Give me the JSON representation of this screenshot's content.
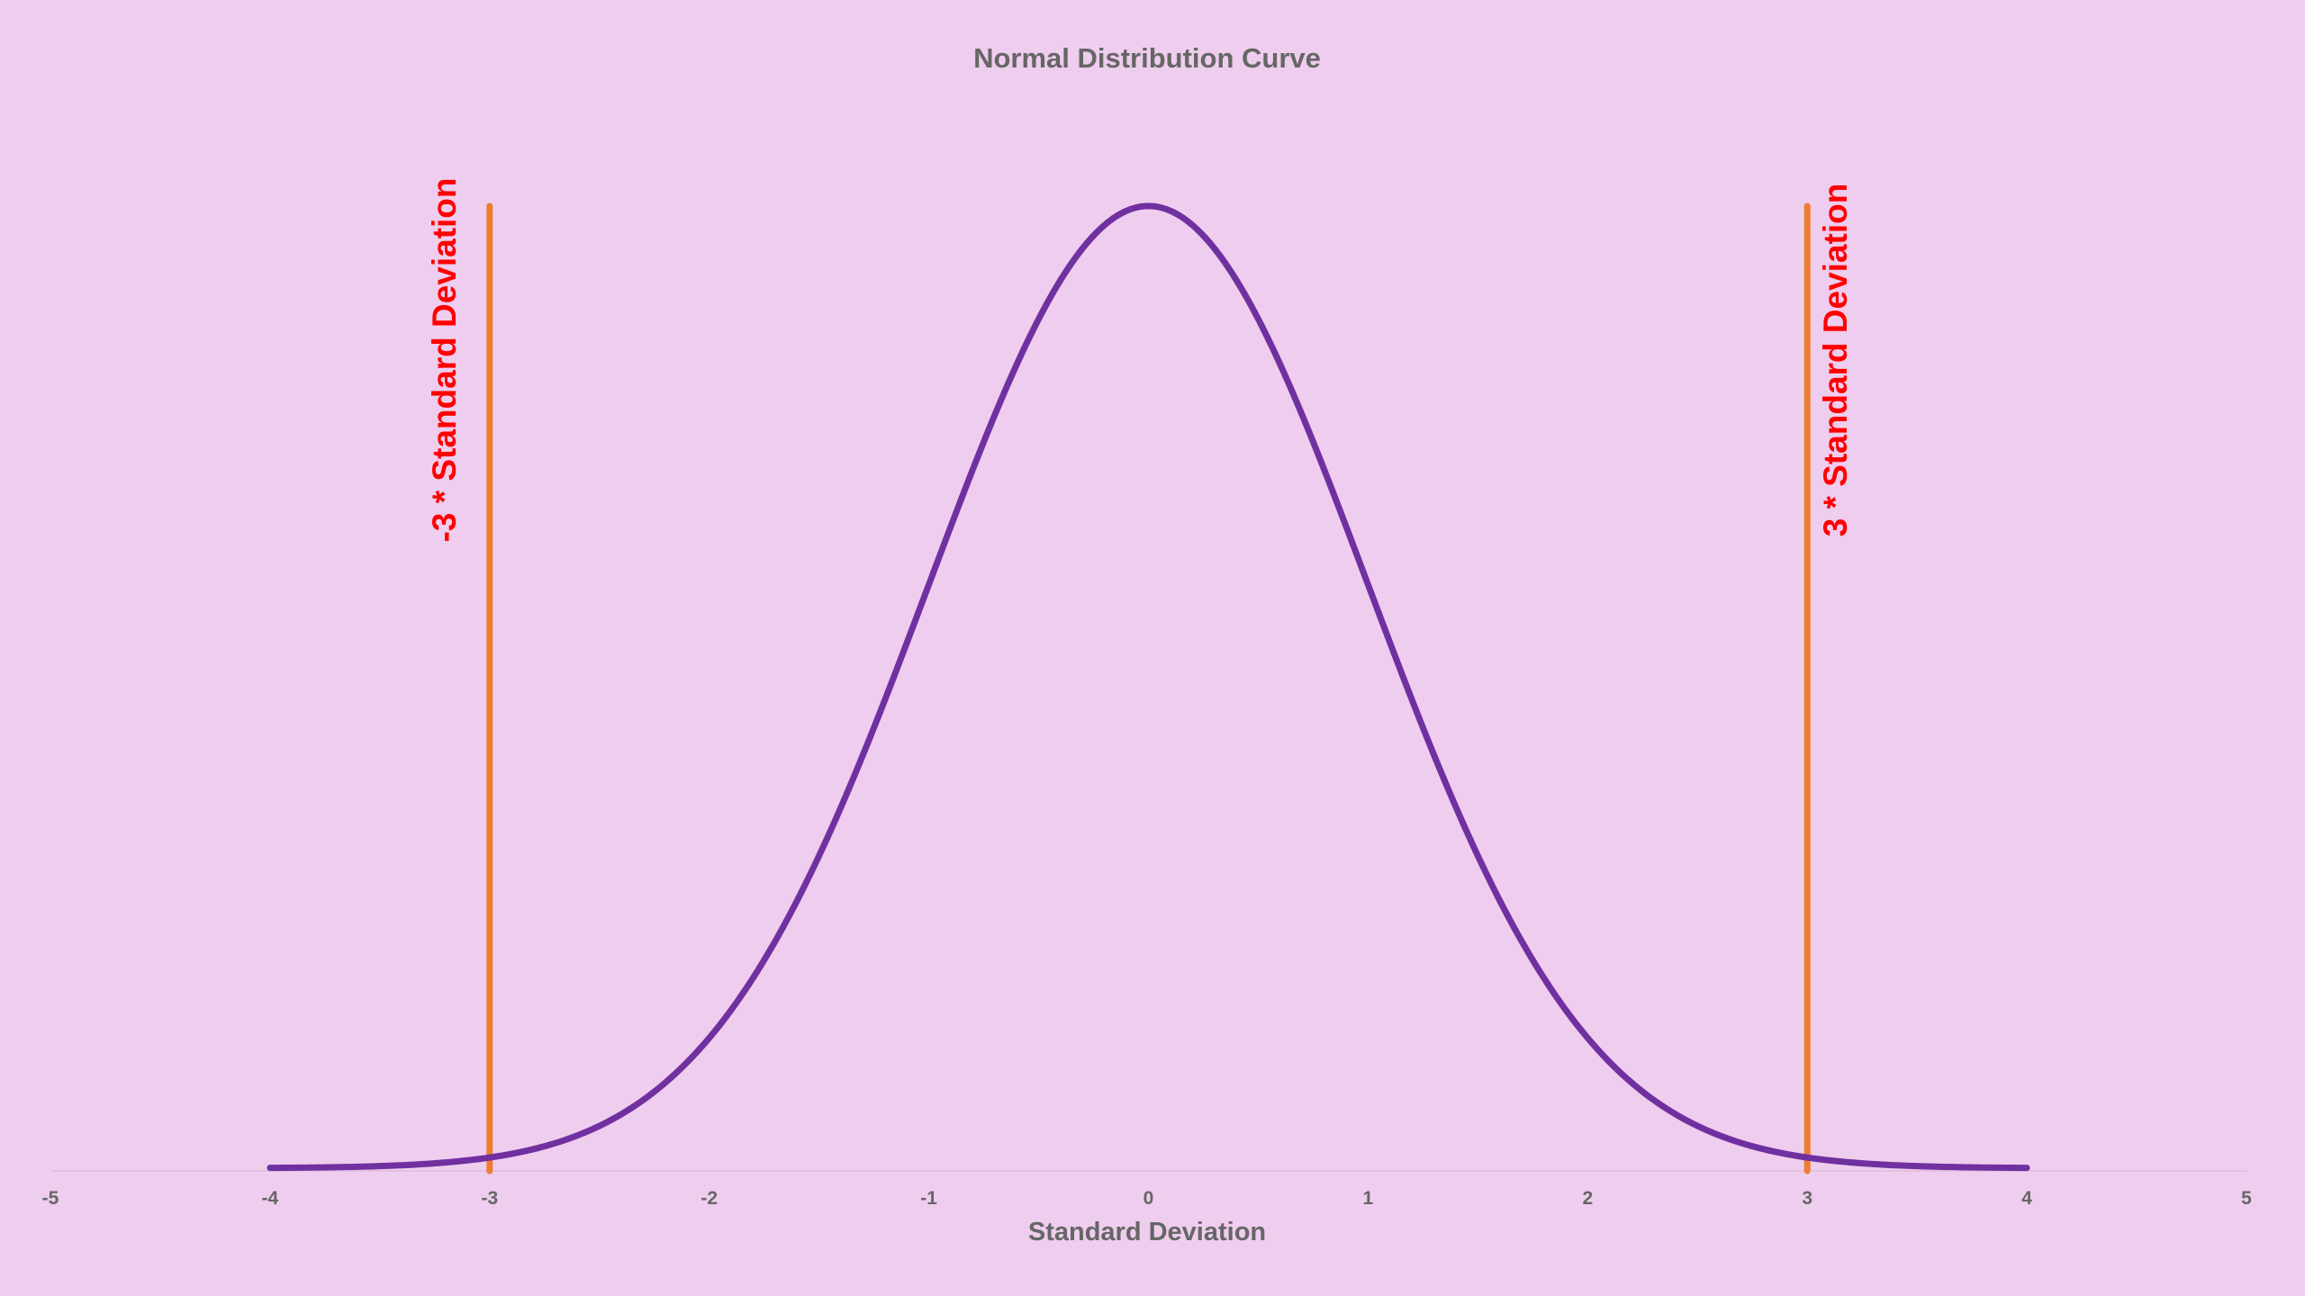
{
  "chart_data": {
    "type": "line",
    "title": "Normal Distribution Curve",
    "xlabel": "Standard Deviation",
    "ylabel": "",
    "xlim": [
      -5,
      5
    ],
    "ylim": [
      0,
      0.3989
    ],
    "x_ticks": [
      "-5",
      "-4",
      "-3",
      "-2",
      "-1",
      "0",
      "1",
      "2",
      "3",
      "4",
      "5"
    ],
    "grid": false,
    "legend": "none",
    "series": [
      {
        "color": "#7030a0",
        "x_range": [
          -4,
          4
        ],
        "mean": 0,
        "std": 1,
        "x": [
          -4,
          -3.5,
          -3,
          -2.5,
          -2,
          -1.5,
          -1,
          -0.5,
          0,
          0.5,
          1,
          1.5,
          2,
          2.5,
          3,
          3.5,
          4
        ],
        "y": [
          0.0001,
          0.0009,
          0.0044,
          0.0175,
          0.054,
          0.1295,
          0.242,
          0.3521,
          0.3989,
          0.3521,
          0.242,
          0.1295,
          0.054,
          0.0175,
          0.0044,
          0.0009,
          0.0001
        ]
      }
    ],
    "reference_lines": [
      {
        "x": -3,
        "color": "#ed7d31",
        "label": "-3 * Standard Deviation",
        "label_color": "#ff0000"
      },
      {
        "x": 3,
        "color": "#ed7d31",
        "label": "3 * Standard Deviation",
        "label_color": "#ff0000"
      }
    ],
    "colors": {
      "background": "#efcdee",
      "text": "#666666",
      "axis": "#e3bfe2"
    }
  }
}
